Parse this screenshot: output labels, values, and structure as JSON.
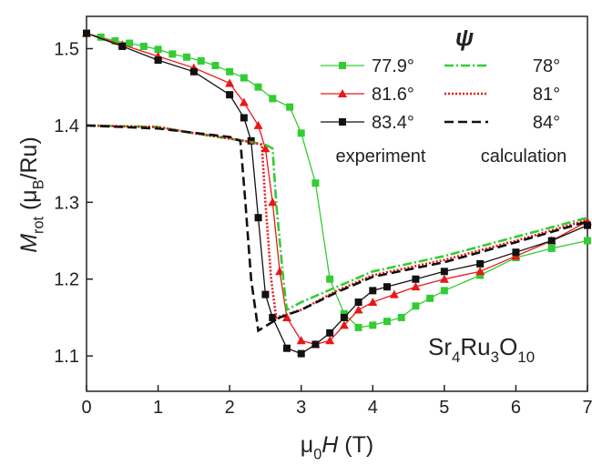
{
  "chart_data": {
    "type": "line",
    "xlim": [
      0,
      7
    ],
    "ylim": [
      1.054,
      1.542
    ],
    "xticks": [
      0,
      1,
      2,
      3,
      4,
      5,
      6,
      7
    ],
    "yticks": [
      1.1,
      1.2,
      1.3,
      1.4,
      1.5
    ],
    "x_label": [
      {
        "text": "μ",
        "style": "normal"
      },
      {
        "text": "0",
        "style": "sub"
      },
      {
        "text": "H",
        "style": "italic"
      },
      {
        "text": " (T)",
        "style": "normal"
      }
    ],
    "y_label": [
      {
        "text": "M",
        "style": "italic"
      },
      {
        "text": "rot",
        "style": "sub"
      },
      {
        "text": " (μ",
        "style": "normal"
      },
      {
        "text": "B",
        "style": "sub"
      },
      {
        "text": "/Ru)",
        "style": "normal"
      }
    ],
    "annotation": [
      {
        "text": "Sr",
        "style": "normal"
      },
      {
        "text": "4",
        "style": "sub"
      },
      {
        "text": "Ru",
        "style": "normal"
      },
      {
        "text": "3",
        "style": "sub"
      },
      {
        "text": "O",
        "style": "normal"
      },
      {
        "text": "10",
        "style": "sub"
      }
    ],
    "legend_title": "ψ",
    "legend_groups": [
      "experiment",
      "calculation"
    ],
    "series": [
      {
        "name": "77.9°",
        "color": "#33cc33",
        "marker": "square",
        "dash": "solid",
        "x": [
          0,
          0.2,
          0.4,
          0.6,
          0.8,
          1.0,
          1.2,
          1.4,
          1.6,
          1.8,
          2.0,
          2.2,
          2.4,
          2.6,
          2.84,
          3.0,
          3.2,
          3.4,
          3.6,
          3.8,
          4.0,
          4.2,
          4.4,
          4.6,
          4.8,
          5.0,
          5.5,
          6.0,
          6.5,
          7.0
        ],
        "values": [
          1.52,
          1.515,
          1.51,
          1.507,
          1.503,
          1.499,
          1.493,
          1.489,
          1.484,
          1.478,
          1.47,
          1.462,
          1.45,
          1.435,
          1.424,
          1.39,
          1.325,
          1.2,
          1.155,
          1.137,
          1.14,
          1.145,
          1.15,
          1.165,
          1.175,
          1.185,
          1.205,
          1.228,
          1.24,
          1.25
        ]
      },
      {
        "name": "81.6°",
        "color": "#e81818",
        "marker": "triangle",
        "dash": "solid",
        "x": [
          0,
          0.5,
          1.0,
          1.5,
          2.0,
          2.2,
          2.4,
          2.5,
          2.6,
          2.7,
          2.8,
          3.0,
          3.2,
          3.4,
          3.6,
          3.8,
          4.0,
          4.3,
          4.6,
          5.0,
          5.5,
          6.0,
          6.5,
          7.0
        ],
        "values": [
          1.52,
          1.505,
          1.49,
          1.475,
          1.455,
          1.43,
          1.4,
          1.37,
          1.3,
          1.21,
          1.15,
          1.12,
          1.115,
          1.12,
          1.14,
          1.16,
          1.17,
          1.18,
          1.19,
          1.2,
          1.21,
          1.23,
          1.25,
          1.275
        ]
      },
      {
        "name": "83.4°",
        "color": "#111111",
        "marker": "square",
        "dash": "solid",
        "x": [
          0,
          0.5,
          1.0,
          1.5,
          2.0,
          2.2,
          2.3,
          2.4,
          2.5,
          2.6,
          2.8,
          3.0,
          3.2,
          3.4,
          3.6,
          3.8,
          4.0,
          4.2,
          4.6,
          5.0,
          5.5,
          6.0,
          6.5,
          7.0
        ],
        "values": [
          1.52,
          1.503,
          1.485,
          1.47,
          1.44,
          1.41,
          1.38,
          1.28,
          1.18,
          1.15,
          1.11,
          1.103,
          1.115,
          1.13,
          1.15,
          1.17,
          1.185,
          1.19,
          1.2,
          1.21,
          1.22,
          1.235,
          1.25,
          1.27
        ]
      },
      {
        "name": "78°",
        "color": "#33cc33",
        "marker": null,
        "dash": "dashdot",
        "x": [
          0,
          1.0,
          1.5,
          2.2,
          2.5,
          2.6,
          2.65,
          2.75,
          2.8,
          3.0,
          3.5,
          4.0,
          5.0,
          6.0,
          7.0
        ],
        "values": [
          1.4,
          1.398,
          1.39,
          1.38,
          1.375,
          1.37,
          1.3,
          1.2,
          1.16,
          1.17,
          1.19,
          1.21,
          1.23,
          1.255,
          1.28
        ]
      },
      {
        "name": "81°",
        "color": "#e81818",
        "marker": null,
        "dash": "dotted",
        "x": [
          0,
          1.0,
          1.5,
          2.2,
          2.45,
          2.5,
          2.58,
          2.65,
          3.0,
          3.5,
          4.0,
          5.0,
          6.0,
          7.0
        ],
        "values": [
          1.4,
          1.398,
          1.39,
          1.38,
          1.375,
          1.3,
          1.2,
          1.15,
          1.16,
          1.185,
          1.205,
          1.225,
          1.25,
          1.277
        ]
      },
      {
        "name": "84°",
        "color": "#111111",
        "marker": null,
        "dash": "dashed",
        "x": [
          0,
          1.0,
          2.0,
          2.15,
          2.22,
          2.3,
          2.4,
          2.7,
          3.0,
          3.5,
          4.0,
          5.0,
          6.0,
          7.0
        ],
        "values": [
          1.4,
          1.396,
          1.385,
          1.38,
          1.3,
          1.2,
          1.133,
          1.15,
          1.16,
          1.183,
          1.203,
          1.222,
          1.248,
          1.275
        ]
      }
    ]
  }
}
